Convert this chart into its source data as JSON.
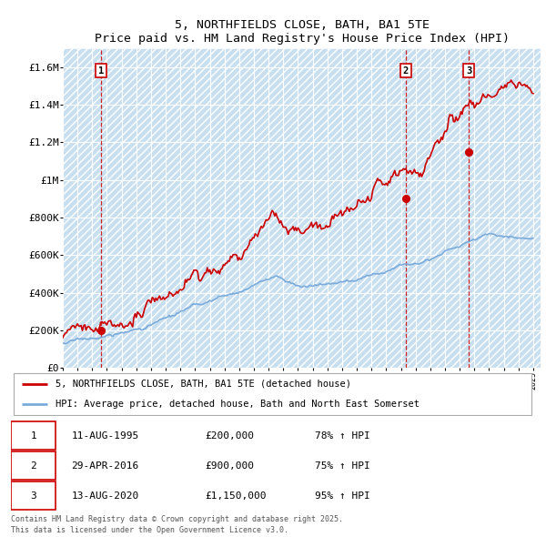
{
  "title": "5, NORTHFIELDS CLOSE, BATH, BA1 5TE",
  "subtitle": "Price paid vs. HM Land Registry's House Price Index (HPI)",
  "ylim": [
    0,
    1700000
  ],
  "yticks": [
    0,
    200000,
    400000,
    600000,
    800000,
    1000000,
    1200000,
    1400000,
    1600000
  ],
  "ytick_labels": [
    "£0",
    "£200K",
    "£400K",
    "£600K",
    "£800K",
    "£1M",
    "£1.2M",
    "£1.4M",
    "£1.6M"
  ],
  "x_start_year": 1993,
  "x_end_year": 2025,
  "bg_color": "#dce9f5",
  "grid_color": "#ffffff",
  "sale_year_floats": [
    1995.61,
    2016.33,
    2020.62
  ],
  "sale_prices": [
    200000,
    900000,
    1150000
  ],
  "sale_labels": [
    "1",
    "2",
    "3"
  ],
  "sale_info": [
    {
      "label": "1",
      "date": "11-AUG-1995",
      "price": "£200,000",
      "hpi": "78% ↑ HPI"
    },
    {
      "label": "2",
      "date": "29-APR-2016",
      "price": "£900,000",
      "hpi": "75% ↑ HPI"
    },
    {
      "label": "3",
      "date": "13-AUG-2020",
      "price": "£1,150,000",
      "hpi": "95% ↑ HPI"
    }
  ],
  "legend_line1": "5, NORTHFIELDS CLOSE, BATH, BA1 5TE (detached house)",
  "legend_line2": "HPI: Average price, detached house, Bath and North East Somerset",
  "footer": "Contains HM Land Registry data © Crown copyright and database right 2025.\nThis data is licensed under the Open Government Licence v3.0.",
  "line_color_red": "#cc0000",
  "line_color_blue": "#7aabda",
  "label_box_color": "#ffffff",
  "label_box_edge": "#cc0000"
}
